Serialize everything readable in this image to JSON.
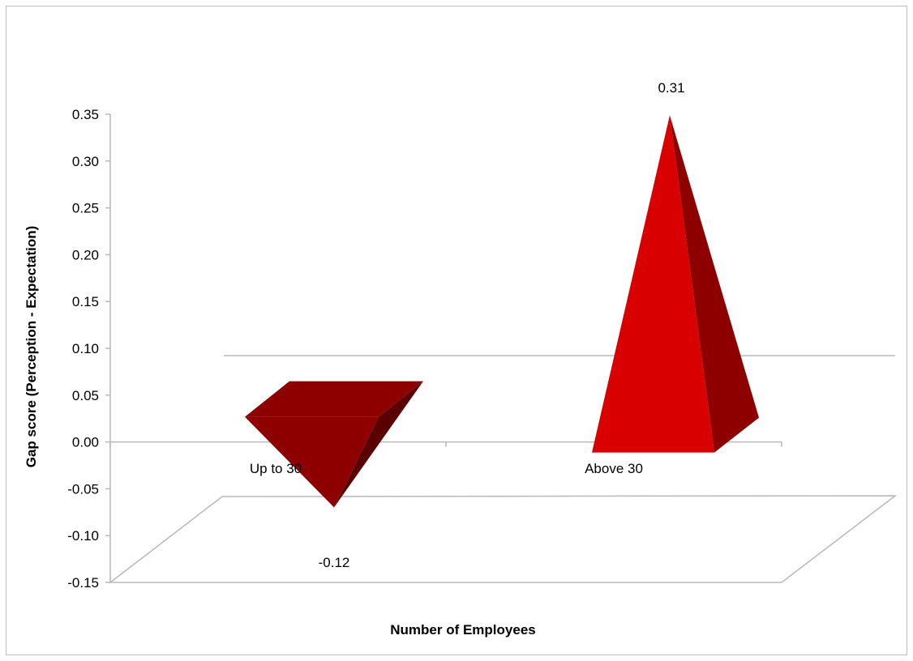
{
  "chart_data": {
    "type": "bar",
    "style": "3d-pyramid",
    "title": "",
    "categories": [
      "Up to 30",
      "Above 30"
    ],
    "values": [
      -0.12,
      0.31
    ],
    "data_labels": [
      "-0.12",
      "0.31"
    ],
    "xlabel": "Number of Employees",
    "ylabel": "Gap score (Perception - Expectation)",
    "ylim": [
      -0.15,
      0.35
    ],
    "yticks": [
      "0.35",
      "0.30",
      "0.25",
      "0.20",
      "0.15",
      "0.10",
      "0.05",
      "0.00",
      "-0.05",
      "-0.10",
      "-0.15"
    ],
    "grid": false,
    "legend": "none",
    "colors": {
      "negative_top": "#8e0000",
      "negative_side": "#5a0000",
      "positive_front": "#d80000",
      "positive_side": "#8e0000",
      "axis": "#b8b8b8"
    }
  }
}
